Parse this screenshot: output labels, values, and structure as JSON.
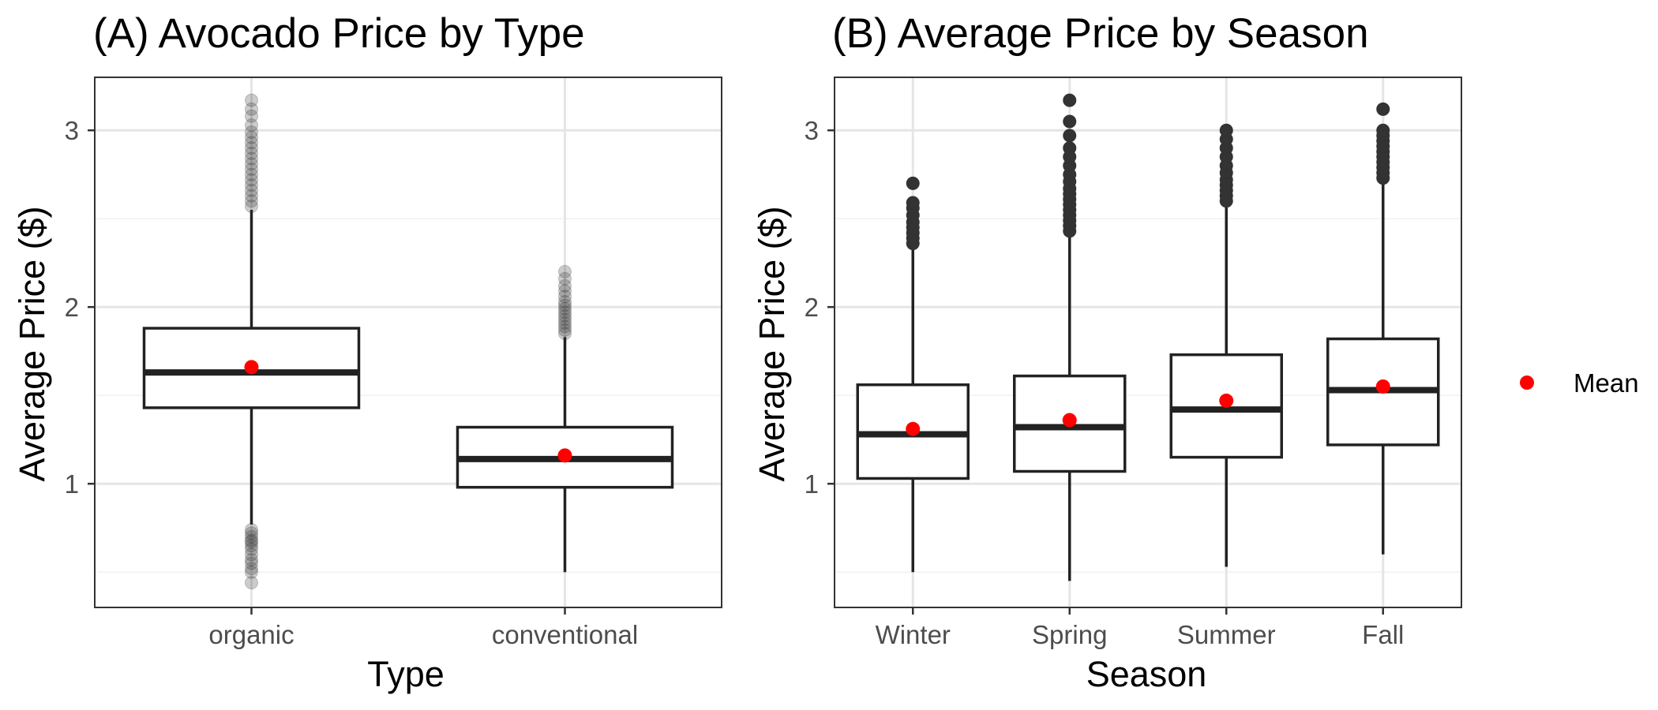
{
  "colors": {
    "panel_background": "#ffffff",
    "panel_border": "#333333",
    "grid_major": "#e5e5e5",
    "grid_minor": "#f0f0f0",
    "box_line": "#222222",
    "outlier": "#333333",
    "mean_marker": "#ff0000",
    "tick_text": "#4d4d4d"
  },
  "legend": {
    "label": "Mean",
    "marker": "red-dot",
    "placement": "right"
  },
  "chart_data": [
    {
      "type": "boxplot",
      "title": "(A) Avocado Price by Type",
      "xlabel": "Type",
      "ylabel": "Average Price ($)",
      "ylim": [
        0.3,
        3.3
      ],
      "yticks": [
        1,
        2,
        3
      ],
      "grid": true,
      "outlier_alpha": 0.25,
      "categories": [
        "organic",
        "conventional"
      ],
      "boxes": [
        {
          "category": "organic",
          "whisker_low": 0.77,
          "q1": 1.43,
          "median": 1.63,
          "q3": 1.88,
          "whisker_high": 2.55,
          "mean": 1.66,
          "outliers": [
            0.44,
            0.5,
            0.52,
            0.55,
            0.57,
            0.6,
            0.63,
            0.65,
            0.67,
            0.68,
            0.7,
            0.72,
            0.74,
            2.57,
            2.6,
            2.63,
            2.66,
            2.69,
            2.72,
            2.75,
            2.78,
            2.81,
            2.84,
            2.87,
            2.9,
            2.93,
            2.96,
            2.99,
            3.03,
            3.08,
            3.12,
            3.17
          ]
        },
        {
          "category": "conventional",
          "whisker_low": 0.5,
          "q1": 0.98,
          "median": 1.14,
          "q3": 1.32,
          "whisker_high": 1.83,
          "mean": 1.16,
          "outliers": [
            1.85,
            1.87,
            1.89,
            1.91,
            1.93,
            1.95,
            1.97,
            1.99,
            2.01,
            2.03,
            2.06,
            2.09,
            2.12,
            2.16,
            2.2
          ]
        }
      ]
    },
    {
      "type": "boxplot",
      "title": "(B) Average Price by Season",
      "xlabel": "Season",
      "ylabel": "Average Price ($)",
      "ylim": [
        0.3,
        3.3
      ],
      "yticks": [
        1,
        2,
        3
      ],
      "grid": true,
      "outlier_alpha": 1,
      "categories": [
        "Winter",
        "Spring",
        "Summer",
        "Fall"
      ],
      "boxes": [
        {
          "category": "Winter",
          "whisker_low": 0.5,
          "q1": 1.03,
          "median": 1.28,
          "q3": 1.56,
          "whisker_high": 2.34,
          "mean": 1.31,
          "outliers": [
            2.36,
            2.39,
            2.42,
            2.45,
            2.48,
            2.52,
            2.56,
            2.59,
            2.7
          ]
        },
        {
          "category": "Spring",
          "whisker_low": 0.45,
          "q1": 1.07,
          "median": 1.32,
          "q3": 1.61,
          "whisker_high": 2.41,
          "mean": 1.36,
          "outliers": [
            2.43,
            2.46,
            2.49,
            2.52,
            2.55,
            2.58,
            2.61,
            2.64,
            2.67,
            2.71,
            2.75,
            2.8,
            2.85,
            2.9,
            2.97,
            3.05,
            3.17
          ]
        },
        {
          "category": "Summer",
          "whisker_low": 0.53,
          "q1": 1.15,
          "median": 1.42,
          "q3": 1.73,
          "whisker_high": 2.58,
          "mean": 1.47,
          "outliers": [
            2.6,
            2.63,
            2.66,
            2.69,
            2.72,
            2.76,
            2.8,
            2.85,
            2.9,
            2.95,
            3.0
          ]
        },
        {
          "category": "Fall",
          "whisker_low": 0.6,
          "q1": 1.22,
          "median": 1.53,
          "q3": 1.82,
          "whisker_high": 2.7,
          "mean": 1.55,
          "outliers": [
            2.73,
            2.76,
            2.79,
            2.82,
            2.85,
            2.88,
            2.91,
            2.94,
            2.97,
            3.0,
            3.12
          ]
        }
      ]
    }
  ]
}
